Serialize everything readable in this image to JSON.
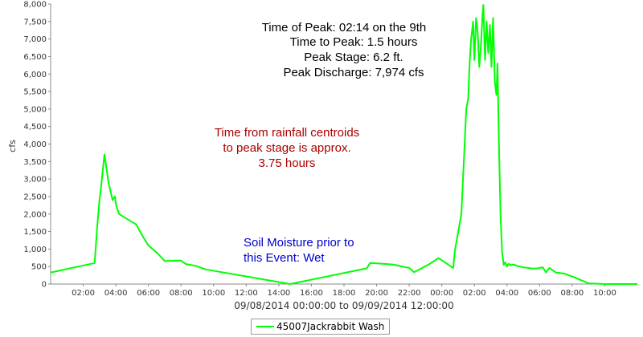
{
  "chart_data": {
    "type": "line",
    "xlabel": "09/08/2014 00:00:00 to 09/09/2014 12:00:00",
    "ylabel": "cfs",
    "xlim": [
      0,
      36
    ],
    "ylim": [
      0,
      8000
    ],
    "grid": false,
    "legend_position": "bottom-center",
    "x_tick_labels": [
      "02:00",
      "04:00",
      "06:00",
      "08:00",
      "10:00",
      "12:00",
      "14:00",
      "16:00",
      "18:00",
      "20:00",
      "22:00",
      "00:00",
      "02:00",
      "04:00",
      "06:00",
      "08:00",
      "10:00"
    ],
    "x_tick_hours": [
      2,
      4,
      6,
      8,
      10,
      12,
      14,
      16,
      18,
      20,
      22,
      24,
      26,
      28,
      30,
      32,
      34
    ],
    "y_ticks": [
      0,
      500,
      1000,
      1500,
      2000,
      2500,
      3000,
      3500,
      4000,
      4500,
      5000,
      5500,
      6000,
      6500,
      7000,
      7500,
      8000
    ],
    "y_tick_labels": [
      "0",
      "500",
      "1,000",
      "1,500",
      "2,000",
      "2,500",
      "3,000",
      "3,500",
      "4,000",
      "4,500",
      "5,000",
      "5,500",
      "6,000",
      "6,500",
      "7,000",
      "7,500",
      "8,000"
    ],
    "series": [
      {
        "name": "45007Jackrabbit Wash",
        "color": "#00ff00",
        "x": [
          0,
          2.7,
          2.85,
          3.0,
          3.1,
          3.3,
          3.4,
          3.55,
          3.8,
          3.95,
          4.0,
          4.05,
          4.2,
          5.25,
          5.6,
          6.0,
          6.6,
          7.0,
          8.0,
          8.3,
          8.9,
          9.5,
          14.7,
          19.4,
          19.6,
          20.0,
          21.0,
          22.0,
          22.3,
          23.2,
          23.8,
          24.7,
          24.8,
          25.2,
          25.4,
          25.5,
          25.62,
          25.72,
          25.8,
          25.92,
          26.0,
          26.1,
          26.2,
          26.3,
          26.4,
          26.5,
          26.55,
          26.65,
          26.75,
          26.85,
          26.95,
          27.05,
          27.15,
          27.25,
          27.35,
          27.42,
          27.5,
          27.6,
          27.7,
          27.8,
          27.9,
          28.0,
          28.1,
          28.2,
          28.4,
          28.6,
          28.8,
          29.0,
          29.6,
          29.9,
          30.2,
          30.4,
          30.6,
          31.0,
          31.5,
          32.1,
          33.0,
          34.0,
          36.0
        ],
        "y": [
          330,
          600,
          1600,
          2400,
          2800,
          3700,
          3400,
          2900,
          2400,
          2500,
          2300,
          2200,
          2000,
          1700,
          1400,
          1100,
          860,
          660,
          670,
          570,
          520,
          420,
          0,
          450,
          600,
          590,
          560,
          460,
          340,
          560,
          740,
          460,
          950,
          2000,
          4000,
          5000,
          5300,
          6400,
          7000,
          7500,
          6400,
          7600,
          7200,
          6200,
          6800,
          7700,
          7974,
          6400,
          7500,
          6600,
          7400,
          6200,
          7600,
          5800,
          5400,
          6300,
          4200,
          2000,
          900,
          550,
          620,
          500,
          580,
          540,
          560,
          520,
          500,
          480,
          440,
          450,
          480,
          330,
          460,
          330,
          300,
          200,
          20,
          0,
          0
        ]
      }
    ],
    "annotations": [
      {
        "lines": [
          "Time of Peak: 02:14 on the 9th",
          "Time to Peak: 1.5 hours",
          "Peak Stage: 6.2 ft.",
          "Peak Discharge: 7,974 cfs"
        ],
        "color": "#000000"
      },
      {
        "lines": [
          "Time from rainfall centroids",
          "to peak stage is approx.",
          "3.75 hours"
        ],
        "color": "#aa0000"
      },
      {
        "lines": [
          "Soil Moisture prior to",
          "this Event: Wet"
        ],
        "color": "#0000cc"
      }
    ]
  }
}
